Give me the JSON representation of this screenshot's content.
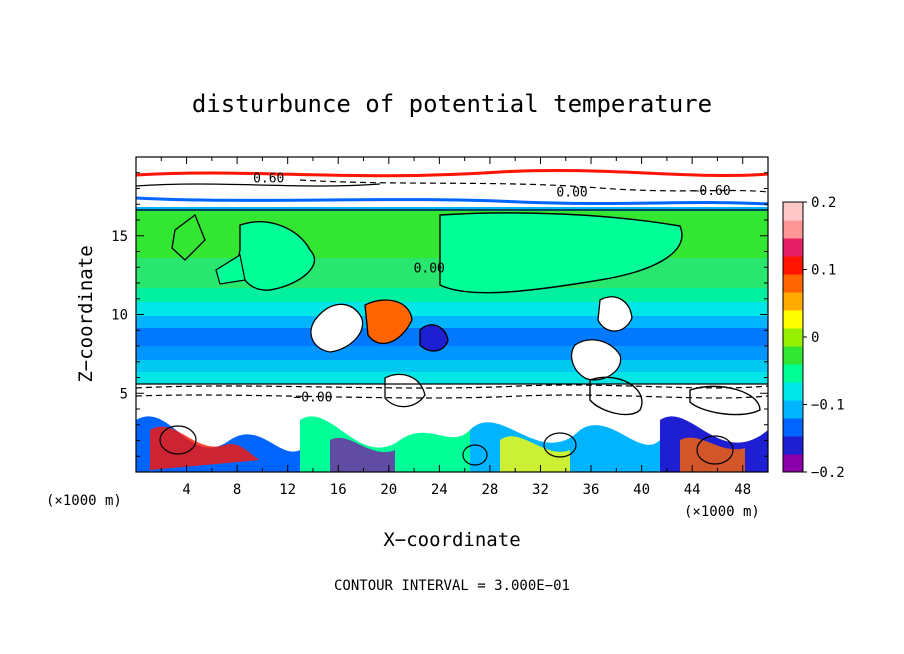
{
  "chart_data": {
    "type": "heatmap",
    "title": "disturbunce of potential temperature",
    "xlabel": "X−coordinate",
    "ylabel": "Z−coordinate",
    "x_unit": "(×1000 m)",
    "x_unit_right": "(×1000 m)",
    "xlim": [
      0,
      50
    ],
    "ylim": [
      0,
      20
    ],
    "x_ticks": [
      4,
      8,
      12,
      16,
      20,
      24,
      28,
      32,
      36,
      40,
      44,
      48
    ],
    "y_ticks": [
      5,
      10,
      15
    ],
    "colorbar": {
      "range": [
        -0.2,
        0.2
      ],
      "ticks": [
        "0.2",
        "0.1",
        "0",
        "−0.1",
        "−0.2"
      ],
      "tick_values": [
        0.2,
        0.1,
        0,
        -0.1,
        -0.2
      ],
      "colors": [
        "#8a00a8",
        "#1e1ed2",
        "#0064ff",
        "#00b4ff",
        "#00e6e6",
        "#00ff96",
        "#32e632",
        "#96f000",
        "#ffff00",
        "#ffaa00",
        "#ff6400",
        "#ff1400",
        "#e61e64",
        "#ff9696",
        "#ffc8c8"
      ]
    },
    "contour_labels": [
      {
        "text": "0.60",
        "x": 10.5,
        "y": 18.7
      },
      {
        "text": "0.00",
        "x": 34.5,
        "y": 17.8
      },
      {
        "text": "−0.60",
        "x": 45.5,
        "y": 17.9
      },
      {
        "text": "0.00",
        "x": 23.2,
        "y": 13.0
      },
      {
        "text": "−0.00",
        "x": 14.0,
        "y": 4.8
      }
    ],
    "contour_interval_text": "CONTOUR INTERVAL = 3.000E−01",
    "legend_placement": "right"
  }
}
